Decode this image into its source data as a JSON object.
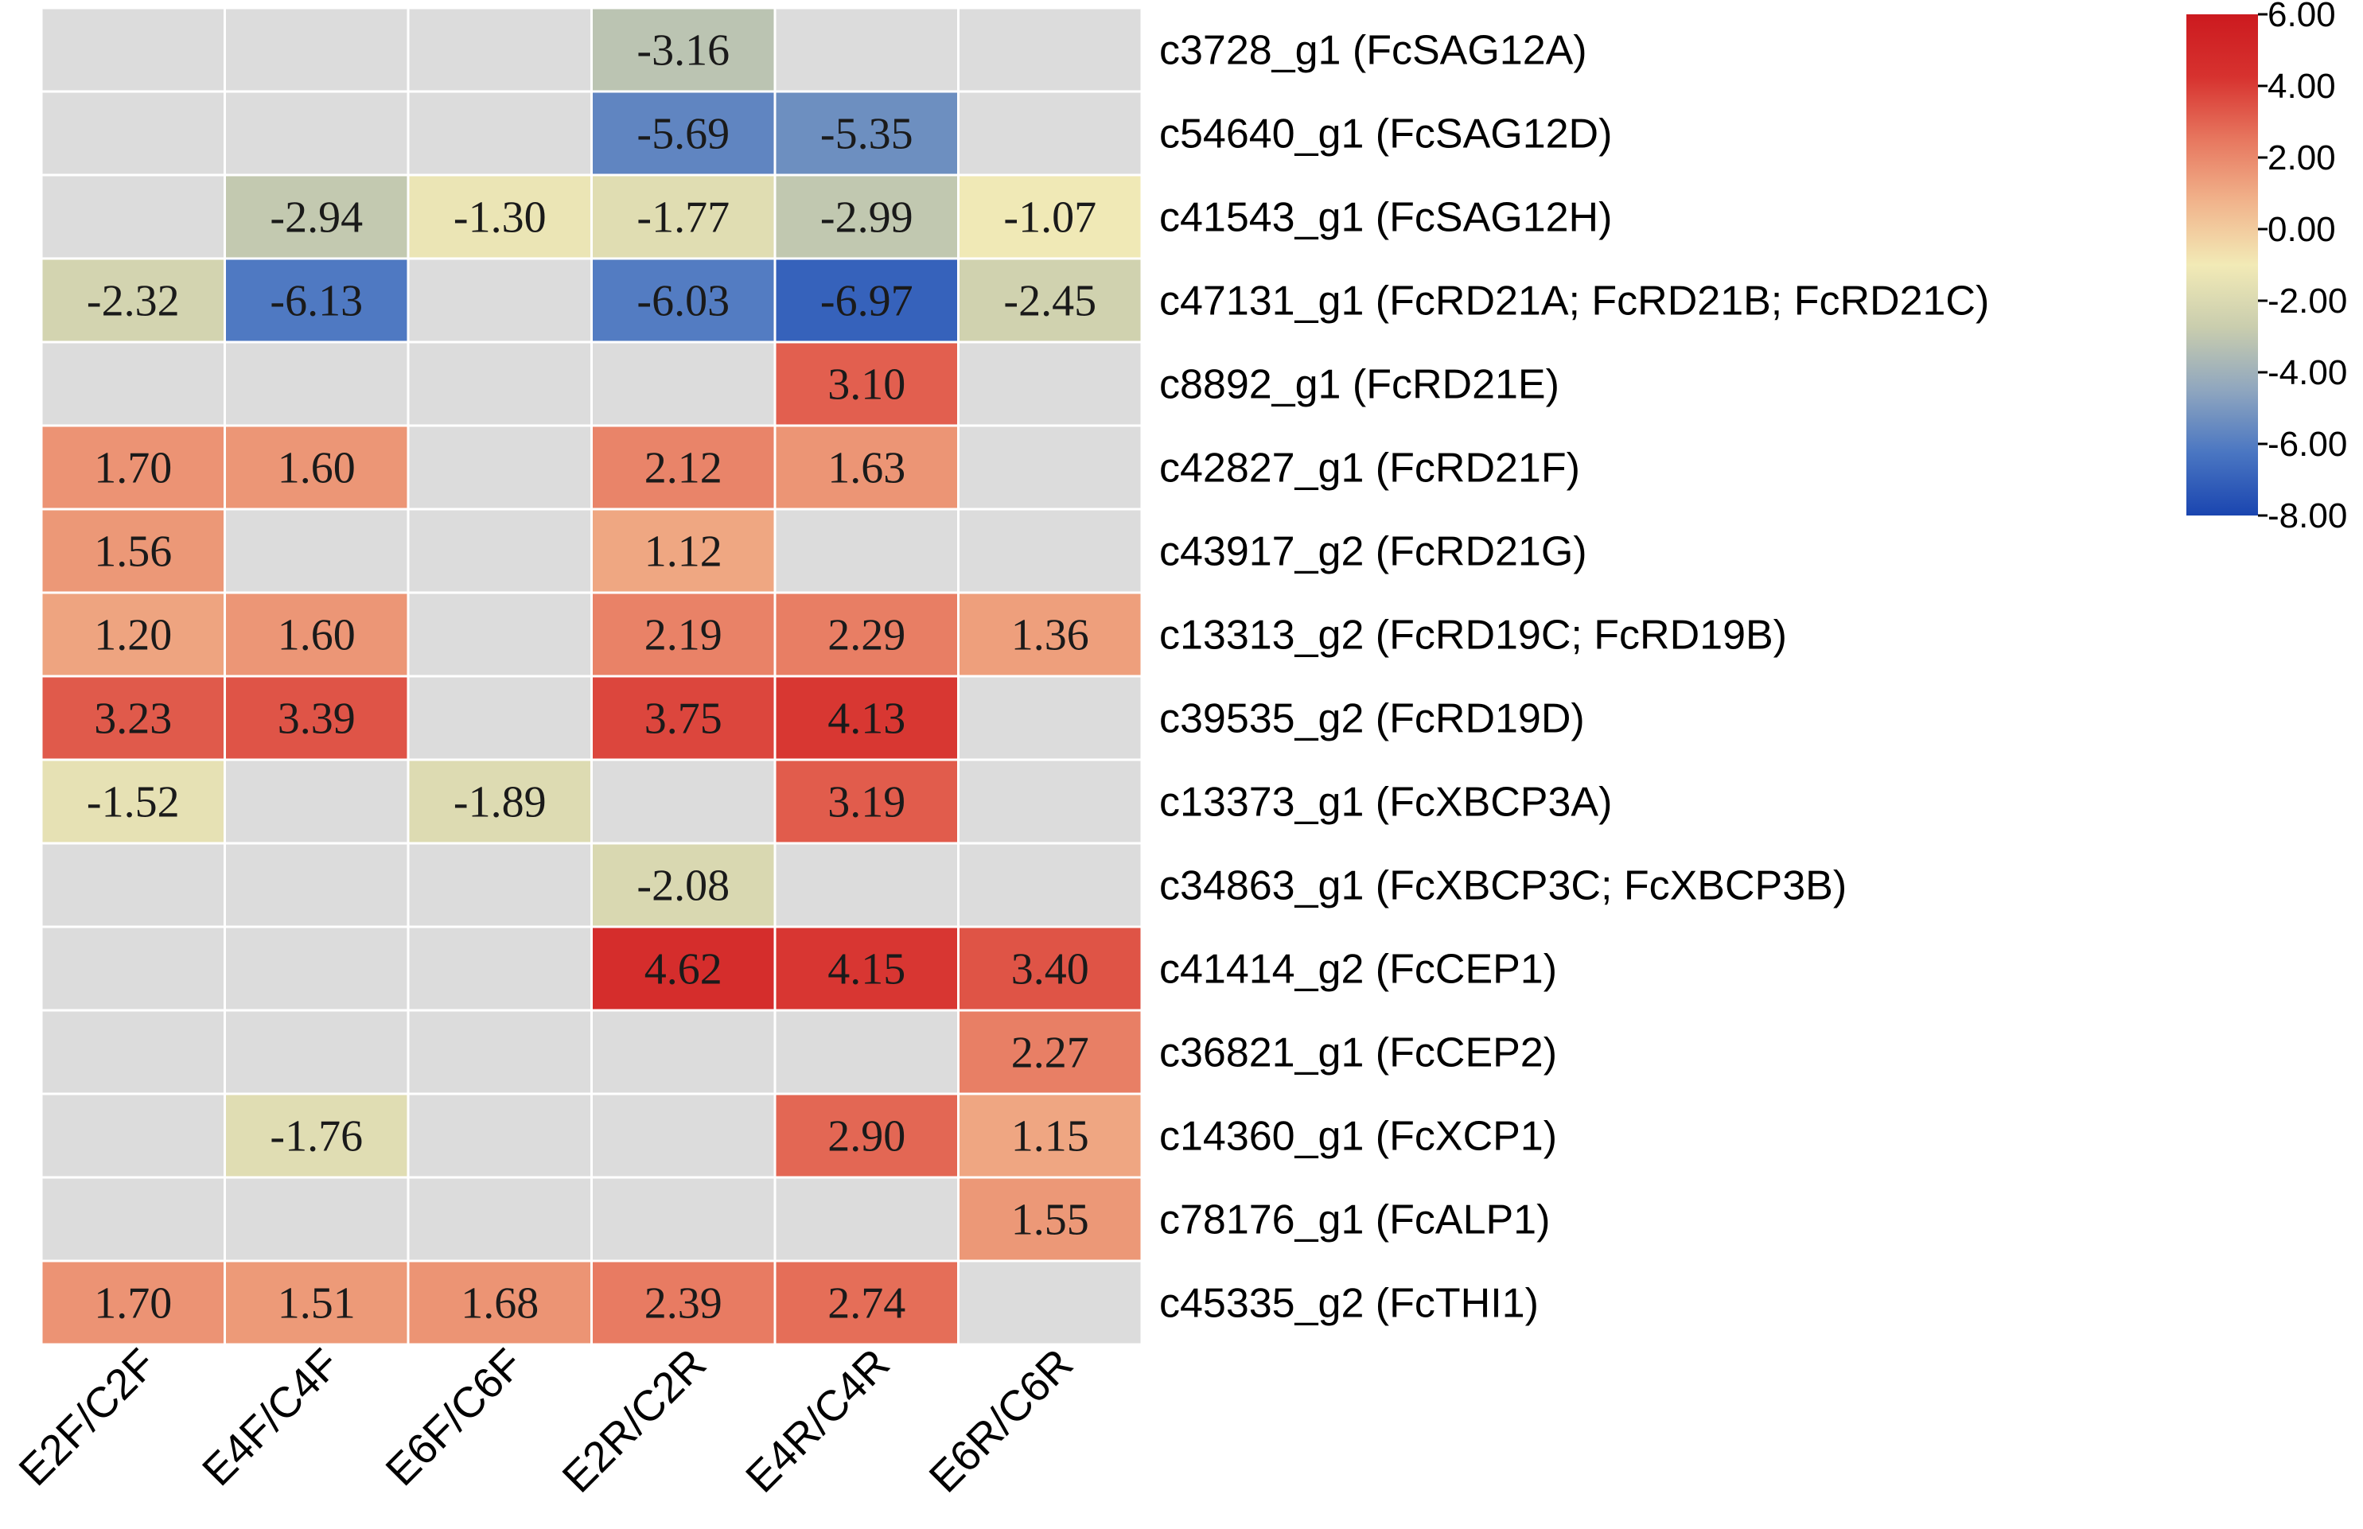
{
  "chart_data": {
    "type": "heatmap",
    "columns": [
      "E2F/C2F",
      "E4F/C4F",
      "E6F/C6F",
      "E2R/C2R",
      "E4R/C4R",
      "E6R/C6R"
    ],
    "rows": [
      "c3728_g1 (FcSAG12A)",
      "c54640_g1 (FcSAG12D)",
      "c41543_g1 (FcSAG12H)",
      "c47131_g1 (FcRD21A; FcRD21B; FcRD21C)",
      "c8892_g1 (FcRD21E)",
      "c42827_g1 (FcRD21F)",
      "c43917_g2 (FcRD21G)",
      "c13313_g2 (FcRD19C; FcRD19B)",
      "c39535_g2 (FcRD19D)",
      "c13373_g1 (FcXBCP3A)",
      "c34863_g1 (FcXBCP3C; FcXBCP3B)",
      "c41414_g2 (FcCEP1)",
      "c36821_g1 (FcCEP2)",
      "c14360_g1 (FcXCP1)",
      "c78176_g1 (FcALP1)",
      "c45335_g2 (FcTHI1)"
    ],
    "values": [
      [
        null,
        null,
        null,
        "-3.16",
        null,
        null
      ],
      [
        null,
        null,
        null,
        "-5.69",
        "-5.35",
        null
      ],
      [
        null,
        "-2.94",
        "-1.30",
        "-1.77",
        "-2.99",
        "-1.07"
      ],
      [
        "-2.32",
        "-6.13",
        null,
        "-6.03",
        "-6.97",
        "-2.45"
      ],
      [
        null,
        null,
        null,
        null,
        "3.10",
        null
      ],
      [
        "1.70",
        "1.60",
        null,
        "2.12",
        "1.63",
        null
      ],
      [
        "1.56",
        null,
        null,
        "1.12",
        null,
        null
      ],
      [
        "1.20",
        "1.60",
        null,
        "2.19",
        "2.29",
        "1.36"
      ],
      [
        "3.23",
        "3.39",
        null,
        "3.75",
        "4.13",
        null
      ],
      [
        "-1.52",
        null,
        "-1.89",
        null,
        "3.19",
        null
      ],
      [
        null,
        null,
        null,
        "-2.08",
        null,
        null
      ],
      [
        null,
        null,
        null,
        "4.62",
        "4.15",
        "3.40"
      ],
      [
        null,
        null,
        null,
        null,
        null,
        "2.27"
      ],
      [
        null,
        "-1.76",
        null,
        null,
        "2.90",
        "1.15"
      ],
      [
        null,
        null,
        null,
        null,
        null,
        "1.55"
      ],
      [
        "1.70",
        "1.51",
        "1.68",
        "2.39",
        "2.74",
        null
      ]
    ],
    "missing_color": "#dcdcdc",
    "colorbar": {
      "range": [
        -8,
        6
      ],
      "ticks": [
        "6.00",
        "4.00",
        "2.00",
        "0.00",
        "-2.00",
        "-4.00",
        "-6.00",
        "-8.00"
      ],
      "colors": [
        "#1a45b0",
        "#4a76c2",
        "#8fa6bf",
        "#c9cdae",
        "#f2eab6",
        "#f1b48c",
        "#e7775f",
        "#d7322f",
        "#cc1a1f"
      ]
    }
  }
}
